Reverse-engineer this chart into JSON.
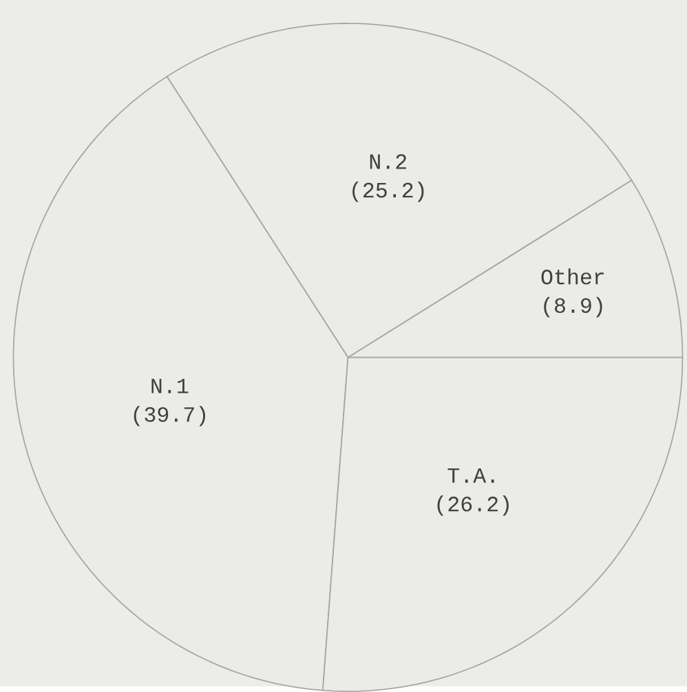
{
  "chart_data": {
    "type": "pie",
    "categories": [
      "Other",
      "N.2",
      "N.1",
      "T.A."
    ],
    "values": [
      8.9,
      25.2,
      39.7,
      26.2
    ],
    "value_labels": [
      "(8.9)",
      "(25.2)",
      "(39.7)",
      "(26.2)"
    ],
    "colors": [
      "#ebebe7",
      "#ebebe7",
      "#ebebe7",
      "#ebebe7"
    ]
  }
}
